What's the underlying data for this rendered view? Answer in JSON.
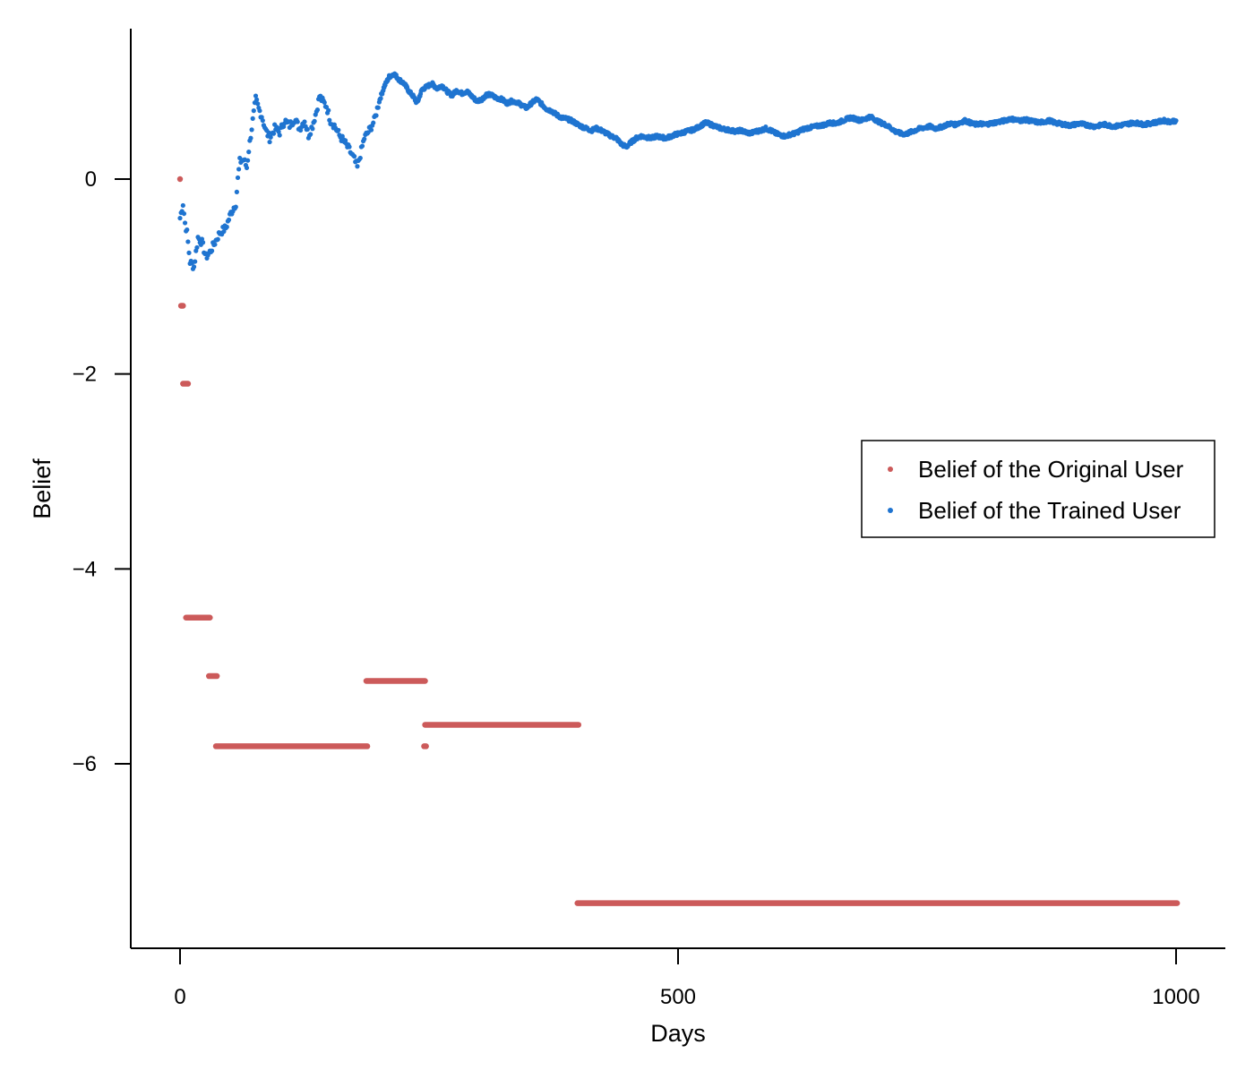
{
  "chart_data": {
    "type": "scatter",
    "title": "",
    "xlabel": "Days",
    "ylabel": "Belief",
    "xlim": [
      -50,
      1050
    ],
    "ylim": [
      -7.9,
      1.55
    ],
    "xticks": [
      0,
      500,
      1000
    ],
    "yticks": [
      0,
      -2,
      -4,
      -6
    ],
    "x_tick_labels": [
      "0",
      "500",
      "1000"
    ],
    "y_tick_labels": [
      "0",
      "−2",
      "−4",
      "−6"
    ],
    "grid": false,
    "legend_position": "right",
    "series": [
      {
        "name": "Belief of the Original User",
        "color": "#cc5a5a",
        "segments": [
          {
            "x": [
              0,
              0
            ],
            "y": 0.0
          },
          {
            "x": [
              1,
              3
            ],
            "y": -1.3
          },
          {
            "x": [
              3,
              8
            ],
            "y": -2.1
          },
          {
            "x": [
              6,
              30
            ],
            "y": -4.5
          },
          {
            "x": [
              29,
              37
            ],
            "y": -5.1
          },
          {
            "x": [
              36,
              188
            ],
            "y": -5.82
          },
          {
            "x": [
              187,
              246
            ],
            "y": -5.15
          },
          {
            "x": [
              245,
              247
            ],
            "y": -5.82
          },
          {
            "x": [
              246,
              400
            ],
            "y": -5.6
          },
          {
            "x": [
              399,
              1001
            ],
            "y": -7.43
          }
        ]
      },
      {
        "name": "Belief of the Trained User",
        "color": "#1f74d0",
        "points": [
          [
            0,
            -0.4
          ],
          [
            3,
            -0.25
          ],
          [
            5,
            -0.45
          ],
          [
            7,
            -0.55
          ],
          [
            10,
            -0.85
          ],
          [
            14,
            -0.9
          ],
          [
            18,
            -0.6
          ],
          [
            22,
            -0.65
          ],
          [
            26,
            -0.8
          ],
          [
            30,
            -0.75
          ],
          [
            35,
            -0.65
          ],
          [
            40,
            -0.55
          ],
          [
            46,
            -0.5
          ],
          [
            51,
            -0.35
          ],
          [
            56,
            -0.25
          ],
          [
            58,
            0.0
          ],
          [
            60,
            0.18
          ],
          [
            64,
            0.2
          ],
          [
            67,
            0.12
          ],
          [
            69,
            0.3
          ],
          [
            71,
            0.45
          ],
          [
            73,
            0.6
          ],
          [
            76,
            0.82
          ],
          [
            79,
            0.72
          ],
          [
            82,
            0.65
          ],
          [
            86,
            0.5
          ],
          [
            90,
            0.42
          ],
          [
            95,
            0.52
          ],
          [
            100,
            0.48
          ],
          [
            105,
            0.6
          ],
          [
            110,
            0.55
          ],
          [
            115,
            0.62
          ],
          [
            120,
            0.52
          ],
          [
            125,
            0.6
          ],
          [
            129,
            0.45
          ],
          [
            133,
            0.55
          ],
          [
            137,
            0.7
          ],
          [
            140,
            0.85
          ],
          [
            143,
            0.8
          ],
          [
            147,
            0.75
          ],
          [
            151,
            0.6
          ],
          [
            155,
            0.55
          ],
          [
            160,
            0.45
          ],
          [
            165,
            0.38
          ],
          [
            170,
            0.3
          ],
          [
            175,
            0.2
          ],
          [
            178,
            0.12
          ],
          [
            181,
            0.25
          ],
          [
            185,
            0.42
          ],
          [
            190,
            0.5
          ],
          [
            195,
            0.6
          ],
          [
            200,
            0.8
          ],
          [
            205,
            0.95
          ],
          [
            210,
            1.05
          ],
          [
            215,
            1.08
          ],
          [
            220,
            1.02
          ],
          [
            225,
            0.98
          ],
          [
            230,
            0.9
          ],
          [
            234,
            0.85
          ],
          [
            238,
            0.78
          ],
          [
            243,
            0.92
          ],
          [
            248,
            0.95
          ],
          [
            253,
            0.98
          ],
          [
            258,
            0.93
          ],
          [
            263,
            0.96
          ],
          [
            268,
            0.9
          ],
          [
            273,
            0.86
          ],
          [
            278,
            0.91
          ],
          [
            283,
            0.88
          ],
          [
            288,
            0.9
          ],
          [
            293,
            0.85
          ],
          [
            298,
            0.8
          ],
          [
            303,
            0.82
          ],
          [
            308,
            0.87
          ],
          [
            313,
            0.86
          ],
          [
            318,
            0.83
          ],
          [
            323,
            0.82
          ],
          [
            328,
            0.78
          ],
          [
            333,
            0.8
          ],
          [
            338,
            0.79
          ],
          [
            343,
            0.76
          ],
          [
            348,
            0.73
          ],
          [
            353,
            0.78
          ],
          [
            358,
            0.82
          ],
          [
            363,
            0.77
          ],
          [
            368,
            0.72
          ],
          [
            373,
            0.7
          ],
          [
            378,
            0.66
          ],
          [
            383,
            0.63
          ],
          [
            388,
            0.62
          ],
          [
            393,
            0.6
          ],
          [
            398,
            0.57
          ],
          [
            403,
            0.54
          ],
          [
            408,
            0.52
          ],
          [
            413,
            0.5
          ],
          [
            418,
            0.52
          ],
          [
            423,
            0.5
          ],
          [
            428,
            0.47
          ],
          [
            433,
            0.44
          ],
          [
            438,
            0.42
          ],
          [
            443,
            0.36
          ],
          [
            448,
            0.33
          ],
          [
            453,
            0.38
          ],
          [
            458,
            0.42
          ],
          [
            463,
            0.44
          ],
          [
            468,
            0.43
          ],
          [
            473,
            0.42
          ],
          [
            478,
            0.44
          ],
          [
            483,
            0.43
          ],
          [
            488,
            0.42
          ],
          [
            493,
            0.44
          ],
          [
            498,
            0.46
          ],
          [
            503,
            0.47
          ],
          [
            508,
            0.49
          ],
          [
            513,
            0.5
          ],
          [
            518,
            0.52
          ],
          [
            523,
            0.55
          ],
          [
            528,
            0.58
          ],
          [
            533,
            0.56
          ],
          [
            538,
            0.54
          ],
          [
            543,
            0.52
          ],
          [
            548,
            0.51
          ],
          [
            553,
            0.5
          ],
          [
            558,
            0.49
          ],
          [
            563,
            0.5
          ],
          [
            568,
            0.48
          ],
          [
            573,
            0.47
          ],
          [
            578,
            0.49
          ],
          [
            583,
            0.5
          ],
          [
            588,
            0.52
          ],
          [
            593,
            0.5
          ],
          [
            598,
            0.47
          ],
          [
            603,
            0.45
          ],
          [
            608,
            0.44
          ],
          [
            613,
            0.46
          ],
          [
            618,
            0.47
          ],
          [
            623,
            0.5
          ],
          [
            628,
            0.52
          ],
          [
            633,
            0.53
          ],
          [
            638,
            0.54
          ],
          [
            643,
            0.55
          ],
          [
            648,
            0.56
          ],
          [
            653,
            0.58
          ],
          [
            658,
            0.57
          ],
          [
            663,
            0.59
          ],
          [
            668,
            0.61
          ],
          [
            673,
            0.63
          ],
          [
            678,
            0.62
          ],
          [
            683,
            0.6
          ],
          [
            688,
            0.62
          ],
          [
            693,
            0.64
          ],
          [
            698,
            0.61
          ],
          [
            703,
            0.58
          ],
          [
            708,
            0.56
          ],
          [
            713,
            0.53
          ],
          [
            718,
            0.49
          ],
          [
            723,
            0.47
          ],
          [
            728,
            0.46
          ],
          [
            733,
            0.48
          ],
          [
            738,
            0.5
          ],
          [
            743,
            0.52
          ],
          [
            748,
            0.53
          ],
          [
            753,
            0.54
          ],
          [
            758,
            0.52
          ],
          [
            763,
            0.53
          ],
          [
            768,
            0.55
          ],
          [
            773,
            0.57
          ],
          [
            778,
            0.56
          ],
          [
            783,
            0.58
          ],
          [
            788,
            0.6
          ],
          [
            793,
            0.58
          ],
          [
            798,
            0.56
          ],
          [
            803,
            0.57
          ],
          [
            808,
            0.56
          ],
          [
            813,
            0.57
          ],
          [
            818,
            0.58
          ],
          [
            823,
            0.59
          ],
          [
            828,
            0.6
          ],
          [
            833,
            0.62
          ],
          [
            838,
            0.61
          ],
          [
            843,
            0.6
          ],
          [
            848,
            0.61
          ],
          [
            853,
            0.6
          ],
          [
            858,
            0.59
          ],
          [
            863,
            0.58
          ],
          [
            868,
            0.59
          ],
          [
            873,
            0.6
          ],
          [
            878,
            0.58
          ],
          [
            883,
            0.57
          ],
          [
            888,
            0.56
          ],
          [
            893,
            0.55
          ],
          [
            898,
            0.56
          ],
          [
            903,
            0.57
          ],
          [
            908,
            0.56
          ],
          [
            913,
            0.55
          ],
          [
            918,
            0.54
          ],
          [
            923,
            0.55
          ],
          [
            928,
            0.56
          ],
          [
            933,
            0.55
          ],
          [
            938,
            0.54
          ],
          [
            943,
            0.55
          ],
          [
            948,
            0.56
          ],
          [
            953,
            0.57
          ],
          [
            958,
            0.58
          ],
          [
            963,
            0.57
          ],
          [
            968,
            0.56
          ],
          [
            973,
            0.57
          ],
          [
            978,
            0.58
          ],
          [
            983,
            0.59
          ],
          [
            988,
            0.6
          ],
          [
            993,
            0.59
          ],
          [
            1000,
            0.6
          ]
        ]
      }
    ]
  }
}
